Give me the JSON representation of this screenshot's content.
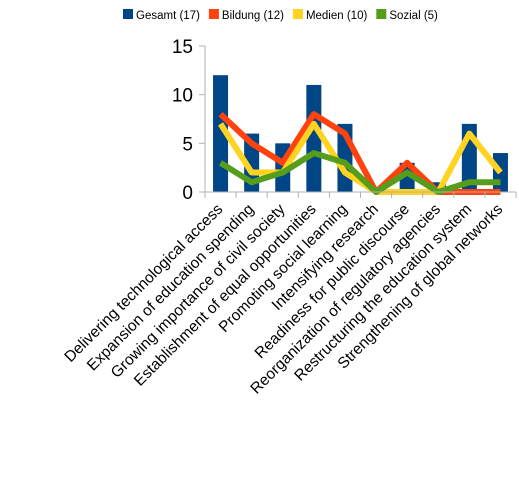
{
  "chart_data": {
    "type": "bar",
    "categories": [
      "Delivering technological access",
      "Expansion of education spending",
      "Growing importance of civil society",
      "Establishment of equal opportunities",
      "Promoting social learning",
      "Intensifying research",
      "Readiness for public discourse",
      "Reorganization of regulatory agencies",
      "Restructuring the education system",
      "Strengthening of global networks"
    ],
    "bar_series": {
      "name": "Gesamt (17)",
      "color": "#004586",
      "values": [
        12,
        6,
        5,
        11,
        7,
        0,
        3,
        1,
        7,
        4
      ]
    },
    "line_series": [
      {
        "name": "Bildung (12)",
        "color": "#ff420e",
        "values": [
          8,
          5,
          3,
          8,
          6,
          0,
          3,
          0,
          0,
          0
        ]
      },
      {
        "name": "Medien (10)",
        "color": "#ffd320",
        "values": [
          7,
          2,
          2,
          7,
          2,
          0,
          0,
          0,
          6,
          2
        ]
      },
      {
        "name": "Sozial (5)",
        "color": "#579d1c",
        "values": [
          3,
          1,
          2,
          4,
          3,
          0,
          2,
          0,
          1,
          1
        ]
      }
    ],
    "ylim": [
      0,
      15
    ],
    "yticks": [
      0,
      5,
      10,
      15
    ],
    "grid": false,
    "legend_position": "top-right"
  }
}
